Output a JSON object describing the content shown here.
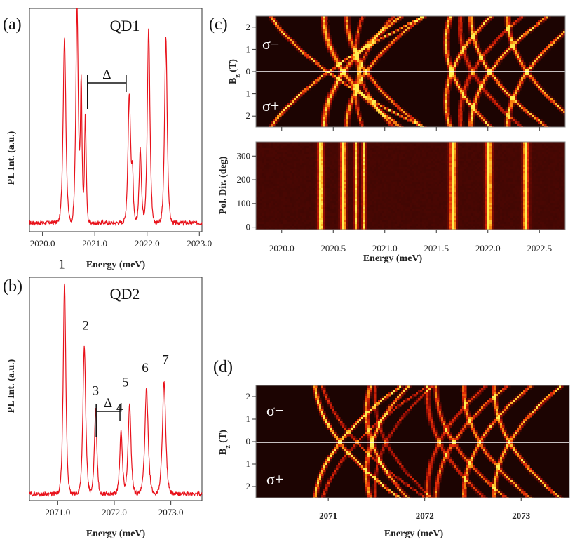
{
  "colors": {
    "spectrum": "#e8121b",
    "map_bg": "#1c0402",
    "map_hot": "#ffe84a"
  },
  "labels": {
    "panel_a": "(a)",
    "panel_b": "(b)",
    "panel_c": "(c)",
    "panel_d": "(d)",
    "qd1": "QD1",
    "qd2": "QD2",
    "delta": "Δ",
    "sigma_minus": "σ−",
    "sigma_plus": "σ+"
  },
  "chart_data": [
    {
      "id": "a",
      "type": "line",
      "title": "QD1",
      "xlabel": "Energy (meV)",
      "ylabel": "PL Int. (a.u.)",
      "xlim": [
        2019.75,
        2023.05
      ],
      "xticks": [
        "2020.0",
        "2021.0",
        "2022.0",
        "2023.0"
      ],
      "xtick_values": [
        2020.0,
        2021.0,
        2022.0,
        2023.0
      ],
      "baseline": 0.04,
      "peaks": [
        {
          "x": 2020.42,
          "h": 0.83,
          "w": 0.036
        },
        {
          "x": 2020.66,
          "h": 0.97,
          "w": 0.032
        },
        {
          "x": 2020.74,
          "h": 0.62,
          "w": 0.022
        },
        {
          "x": 2020.82,
          "h": 0.49,
          "w": 0.022
        },
        {
          "x": 2021.66,
          "h": 0.58,
          "w": 0.034
        },
        {
          "x": 2021.72,
          "h": 0.2,
          "w": 0.022
        },
        {
          "x": 2021.87,
          "h": 0.33,
          "w": 0.03
        },
        {
          "x": 2022.03,
          "h": 0.87,
          "w": 0.034
        },
        {
          "x": 2022.36,
          "h": 0.83,
          "w": 0.034
        }
      ],
      "delta_marker": {
        "x1": 2020.86,
        "x2": 2021.6
      }
    },
    {
      "id": "b",
      "type": "line",
      "title": "QD2",
      "xlabel": "Energy (meV)",
      "ylabel": "PL Int. (a.u.)",
      "xlim": [
        2070.5,
        2073.55
      ],
      "xticks": [
        "2071.0",
        "2072.0",
        "2073.0"
      ],
      "xtick_values": [
        2071.0,
        2072.0,
        2073.0
      ],
      "baseline": 0.03,
      "peaks": [
        {
          "x": 2071.12,
          "h": 0.94,
          "w": 0.032,
          "label": "1"
        },
        {
          "x": 2071.47,
          "h": 0.66,
          "w": 0.034,
          "label": "2"
        },
        {
          "x": 2071.67,
          "h": 0.38,
          "w": 0.03,
          "label": "3"
        },
        {
          "x": 2072.12,
          "h": 0.28,
          "w": 0.032,
          "label": "4"
        },
        {
          "x": 2072.27,
          "h": 0.4,
          "w": 0.035,
          "label": "5"
        },
        {
          "x": 2072.57,
          "h": 0.47,
          "w": 0.04,
          "label": "6"
        },
        {
          "x": 2072.88,
          "h": 0.5,
          "w": 0.04,
          "label": "7"
        }
      ],
      "delta_marker": {
        "x1": 2071.68,
        "x2": 2072.1
      }
    },
    {
      "id": "c-top",
      "type": "heatmap",
      "ylabel": "Bz (T)",
      "xlim": [
        2019.75,
        2022.75
      ],
      "ylim": [
        -2.5,
        2.5
      ],
      "yticks": [
        "2",
        "1",
        "0",
        "1",
        "2"
      ],
      "ytick_values": [
        2,
        1,
        0,
        -1,
        -2
      ],
      "lines": [
        {
          "e0": 2020.45,
          "g": 0.3,
          "d": 0.02,
          "i": 0.9
        },
        {
          "e0": 2020.45,
          "g": -0.3,
          "d": 0.02,
          "i": 0.9
        },
        {
          "e0": 2020.6,
          "g": 0.15,
          "d": 0.025,
          "i": 0.9
        },
        {
          "e0": 2020.6,
          "g": -0.15,
          "d": 0.025,
          "i": 0.9
        },
        {
          "e0": 2020.75,
          "g": 0.06,
          "d": 0.015,
          "i": 0.7
        },
        {
          "e0": 2020.75,
          "g": -0.06,
          "d": 0.015,
          "i": 0.7
        },
        {
          "e0": 2020.82,
          "g": 0.15,
          "d": 0.02,
          "i": 0.8
        },
        {
          "e0": 2020.82,
          "g": -0.15,
          "d": 0.02,
          "i": 0.8
        },
        {
          "e0": 2021.65,
          "g": 0.08,
          "d": 0.02,
          "i": 0.9
        },
        {
          "e0": 2021.65,
          "g": -0.08,
          "d": 0.02,
          "i": 0.9
        },
        {
          "e0": 2021.85,
          "g": 0.12,
          "d": 0.02,
          "i": 0.6
        },
        {
          "e0": 2021.85,
          "g": -0.12,
          "d": 0.02,
          "i": 0.6
        },
        {
          "e0": 2022.02,
          "g": 0.15,
          "d": 0.02,
          "i": 0.9
        },
        {
          "e0": 2022.02,
          "g": -0.15,
          "d": 0.02,
          "i": 0.9
        },
        {
          "e0": 2022.38,
          "g": 0.15,
          "d": 0.02,
          "i": 0.9
        },
        {
          "e0": 2022.38,
          "g": -0.15,
          "d": 0.02,
          "i": 0.9
        }
      ]
    },
    {
      "id": "c-bottom",
      "type": "heatmap",
      "xlabel": "Energy (meV)",
      "ylabel": "Pol. Dir. (deg)",
      "xlim": [
        2019.75,
        2022.75
      ],
      "ylim": [
        -10,
        360
      ],
      "xticks": [
        "2020.0",
        "2020.5",
        "2021.0",
        "2021.5",
        "2022.0",
        "2022.5"
      ],
      "xtick_values": [
        2020.0,
        2020.5,
        2021.0,
        2021.5,
        2022.0,
        2022.5
      ],
      "yticks": [
        "0",
        "100",
        "200",
        "300"
      ],
      "ytick_values": [
        0,
        100,
        200,
        300
      ],
      "stripes": [
        {
          "e": 2020.38,
          "i": 1.0,
          "w": 0.026
        },
        {
          "e": 2020.6,
          "i": 1.0,
          "w": 0.026
        },
        {
          "e": 2020.72,
          "i": 0.85,
          "w": 0.018
        },
        {
          "e": 2020.8,
          "i": 0.8,
          "w": 0.018
        },
        {
          "e": 2021.66,
          "i": 1.0,
          "w": 0.028
        },
        {
          "e": 2022.01,
          "i": 1.0,
          "w": 0.026
        },
        {
          "e": 2022.37,
          "i": 1.0,
          "w": 0.026
        }
      ]
    },
    {
      "id": "d",
      "type": "heatmap",
      "xlabel": "Energy (meV)",
      "ylabel": "Bz (T)",
      "xlim": [
        2070.25,
        2073.5
      ],
      "ylim": [
        -2.5,
        2.5
      ],
      "xticks": [
        "2071",
        "2072",
        "2073"
      ],
      "xtick_values": [
        2071,
        2072,
        2073
      ],
      "yticks": [
        "2",
        "1",
        "0",
        "1",
        "2"
      ],
      "ytick_values": [
        2,
        1,
        0,
        -1,
        -2
      ],
      "lines": [
        {
          "e0": 2071.12,
          "g": 0.18,
          "d": 0.02,
          "i": 1.0
        },
        {
          "e0": 2071.12,
          "g": -0.18,
          "d": 0.02,
          "i": 1.0
        },
        {
          "e0": 2071.45,
          "g": 0.08,
          "d": 0.02,
          "i": 0.85
        },
        {
          "e0": 2071.45,
          "g": -0.08,
          "d": 0.02,
          "i": 0.85
        },
        {
          "e0": 2071.3,
          "g": 0.22,
          "d": 0.015,
          "i": 0.6
        },
        {
          "e0": 2071.3,
          "g": -0.22,
          "d": 0.015,
          "i": 0.6
        },
        {
          "e0": 2071.6,
          "g": 0.12,
          "d": 0.015,
          "i": 0.5
        },
        {
          "e0": 2071.6,
          "g": -0.12,
          "d": 0.015,
          "i": 0.5
        },
        {
          "e0": 2072.15,
          "g": 0.12,
          "d": 0.02,
          "i": 0.6
        },
        {
          "e0": 2072.15,
          "g": -0.12,
          "d": 0.02,
          "i": 0.6
        },
        {
          "e0": 2072.3,
          "g": 0.15,
          "d": 0.02,
          "i": 0.75
        },
        {
          "e0": 2072.3,
          "g": -0.15,
          "d": 0.02,
          "i": 0.75
        },
        {
          "e0": 2072.57,
          "g": 0.14,
          "d": 0.02,
          "i": 0.85
        },
        {
          "e0": 2072.57,
          "g": -0.14,
          "d": 0.02,
          "i": 0.85
        },
        {
          "e0": 2072.88,
          "g": 0.14,
          "d": 0.02,
          "i": 0.9
        },
        {
          "e0": 2072.88,
          "g": -0.14,
          "d": 0.02,
          "i": 0.9
        }
      ]
    }
  ]
}
